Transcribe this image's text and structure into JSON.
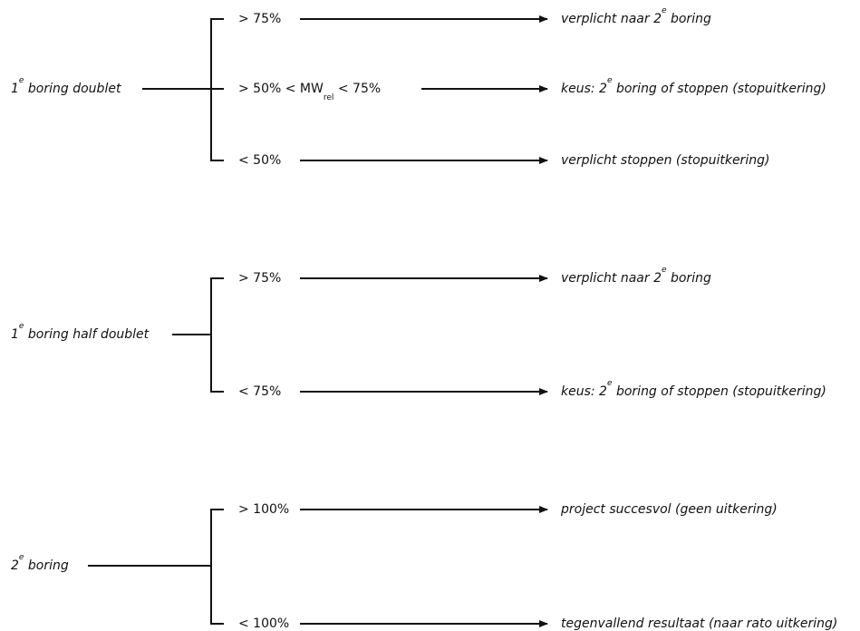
{
  "groups": [
    {
      "source": {
        "pre": "1",
        "sup": "e",
        "post": " boring doublet"
      },
      "branches": [
        {
          "condition": {
            "pre": "> 75%"
          },
          "outcome": {
            "pre": "verplicht naar 2",
            "sup": "e",
            "post": " boring"
          }
        },
        {
          "condition": {
            "pre": "> 50% < MW",
            "sub": "rel",
            "post": " < 75%"
          },
          "outcome": {
            "pre": "keus: 2",
            "sup": "e",
            "post": " boring of stoppen (stopuitkering)"
          }
        },
        {
          "condition": {
            "pre": "< 50%"
          },
          "outcome": {
            "pre": "verplicht stoppen (stopuitkering)"
          }
        }
      ]
    },
    {
      "source": {
        "pre": "1",
        "sup": "e",
        "post": " boring half doublet"
      },
      "branches": [
        {
          "condition": {
            "pre": "> 75%"
          },
          "outcome": {
            "pre": "verplicht naar 2",
            "sup": "e",
            "post": " boring"
          }
        },
        {
          "condition": {
            "pre": "< 75%"
          },
          "outcome": {
            "pre": "keus: 2",
            "sup": "e",
            "post": " boring of stoppen (stopuitkering)"
          }
        }
      ]
    },
    {
      "source": {
        "pre": "2",
        "sup": "e",
        "post": " boring"
      },
      "branches": [
        {
          "condition": {
            "pre": "> 100%"
          },
          "outcome": {
            "pre": "project succesvol (geen uitkering)"
          }
        },
        {
          "condition": {
            "pre": "< 100%"
          },
          "outcome": {
            "pre": "tegenvallend resultaat (naar rato uitkering)"
          }
        }
      ]
    }
  ]
}
